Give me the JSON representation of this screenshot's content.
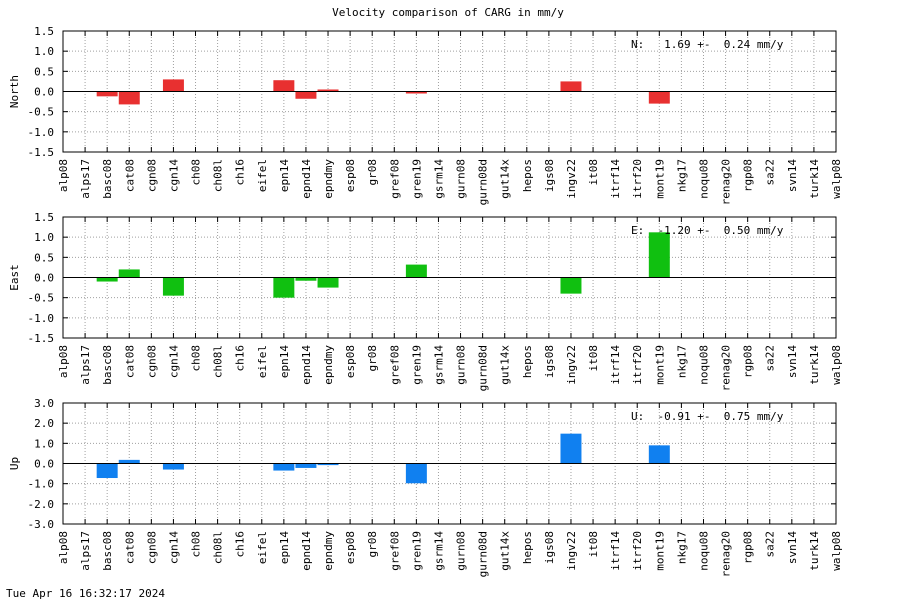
{
  "title": "Velocity comparison of CARG in mm/y",
  "timestamp": "Tue Apr 16 16:32:17 2024",
  "chart_data": [
    {
      "type": "bar",
      "ylabel": "North",
      "ylim": [
        -1.5,
        1.5
      ],
      "yticks": [
        "-1.5",
        "-1.0",
        "-0.5",
        "0.0",
        "0.5",
        "1.0",
        "1.5"
      ],
      "grid": true,
      "color": "#e83030",
      "annotation": "N:   1.69 +-  0.24 mm/y",
      "categories": [
        "alp08",
        "alps17",
        "basc08",
        "cat08",
        "cgn08",
        "cgn14",
        "ch08",
        "ch08l",
        "ch16",
        "eifel",
        "epn14",
        "epnd14",
        "epndmy",
        "esp08",
        "gr08",
        "gref08",
        "gren19",
        "gsrm14",
        "gurn08",
        "gurn08d",
        "gut14x",
        "hepos",
        "igs08",
        "ingv22",
        "it08",
        "itrf14",
        "itrf20",
        "mont19",
        "nkg17",
        "noqu08",
        "renag20",
        "rgp08",
        "sa22",
        "svn14",
        "turk14",
        "walp08"
      ],
      "values": [
        null,
        null,
        -0.12,
        -0.32,
        null,
        0.3,
        null,
        null,
        null,
        null,
        0.28,
        -0.18,
        0.05,
        null,
        null,
        null,
        -0.05,
        null,
        null,
        null,
        null,
        null,
        null,
        0.25,
        null,
        null,
        null,
        -0.3,
        null,
        null,
        null,
        null,
        null,
        null,
        null,
        null
      ]
    },
    {
      "type": "bar",
      "ylabel": "East",
      "ylim": [
        -1.5,
        1.5
      ],
      "yticks": [
        "-1.5",
        "-1.0",
        "-0.5",
        "0.0",
        "0.5",
        "1.0",
        "1.5"
      ],
      "grid": true,
      "color": "#10c010",
      "annotation": "E:  -1.20 +-  0.50 mm/y",
      "categories": [
        "alp08",
        "alps17",
        "basc08",
        "cat08",
        "cgn08",
        "cgn14",
        "ch08",
        "ch08l",
        "ch16",
        "eifel",
        "epn14",
        "epnd14",
        "epndmy",
        "esp08",
        "gr08",
        "gref08",
        "gren19",
        "gsrm14",
        "gurn08",
        "gurn08d",
        "gut14x",
        "hepos",
        "igs08",
        "ingv22",
        "it08",
        "itrf14",
        "itrf20",
        "mont19",
        "nkg17",
        "noqu08",
        "renag20",
        "rgp08",
        "sa22",
        "svn14",
        "turk14",
        "walp08"
      ],
      "values": [
        null,
        null,
        -0.1,
        0.2,
        null,
        -0.45,
        null,
        null,
        null,
        null,
        -0.5,
        -0.08,
        -0.25,
        null,
        null,
        null,
        0.32,
        null,
        null,
        null,
        null,
        null,
        null,
        -0.4,
        null,
        null,
        null,
        1.12,
        null,
        null,
        null,
        null,
        null,
        null,
        null,
        null
      ]
    },
    {
      "type": "bar",
      "ylabel": "Up",
      "ylim": [
        -3.0,
        3.0
      ],
      "yticks": [
        "-3.0",
        "-2.0",
        "-1.0",
        "0.0",
        "1.0",
        "2.0",
        "3.0"
      ],
      "grid": true,
      "color": "#1080f0",
      "annotation": "U:  -0.91 +-  0.75 mm/y",
      "categories": [
        "alp08",
        "alps17",
        "basc08",
        "cat08",
        "cgn08",
        "cgn14",
        "ch08",
        "ch08l",
        "ch16",
        "eifel",
        "epn14",
        "epnd14",
        "epndmy",
        "esp08",
        "gr08",
        "gref08",
        "gren19",
        "gsrm14",
        "gurn08",
        "gurn08d",
        "gut14x",
        "hepos",
        "igs08",
        "ingv22",
        "it08",
        "itrf14",
        "itrf20",
        "mont19",
        "nkg17",
        "noqu08",
        "renag20",
        "rgp08",
        "sa22",
        "svn14",
        "turk14",
        "walp08"
      ],
      "values": [
        null,
        null,
        -0.72,
        0.18,
        null,
        -0.3,
        null,
        null,
        null,
        null,
        -0.35,
        -0.22,
        -0.08,
        null,
        null,
        null,
        -0.98,
        null,
        null,
        null,
        null,
        null,
        null,
        1.48,
        null,
        null,
        null,
        0.9,
        null,
        null,
        null,
        null,
        null,
        null,
        null,
        null
      ]
    }
  ]
}
